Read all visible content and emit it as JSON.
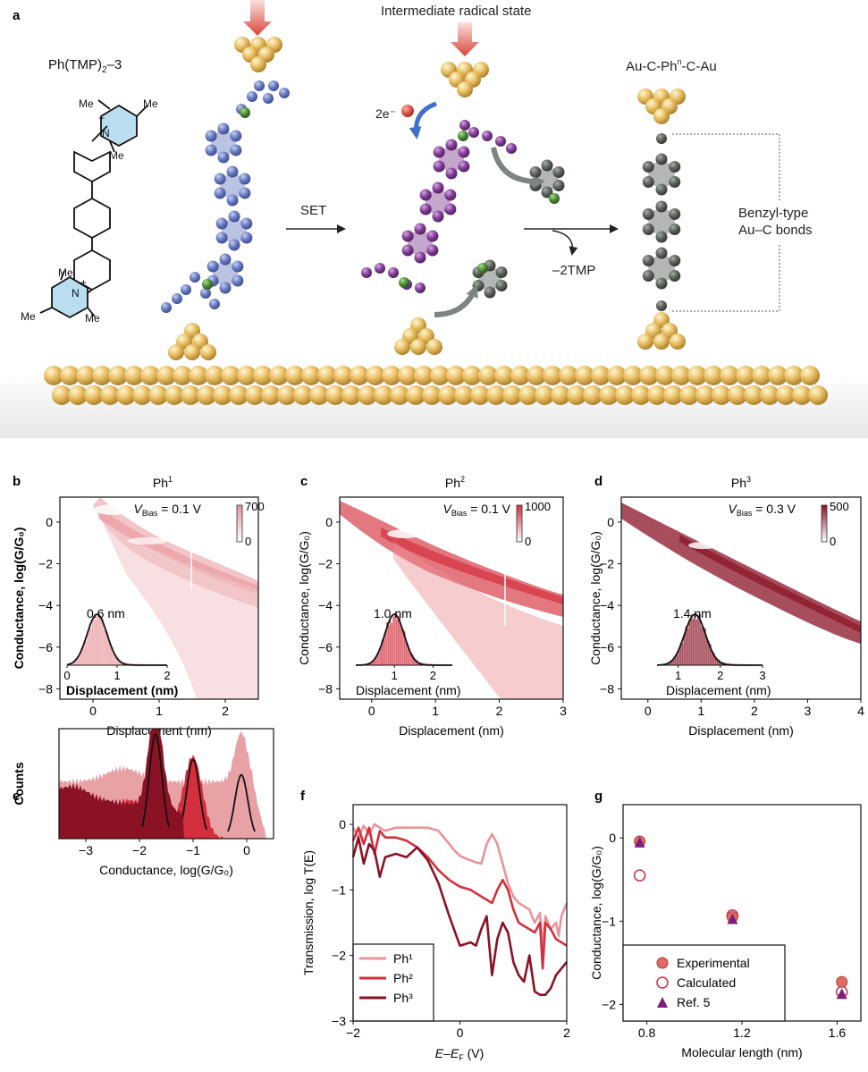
{
  "colors": {
    "gold": "#e9c26d",
    "gold_dark": "#b88a2c",
    "blue": "#6679bd",
    "purple": "#7e3a8e",
    "gray": "#5b605b",
    "green": "#4f8f3a",
    "arrow_red": "#d9534a",
    "ph1": "#e8959a",
    "ph2": "#d42f3c",
    "ph3": "#8a1224",
    "g_point": "#e06b63"
  },
  "panel_a": {
    "label": "a",
    "molecule_name": "Ph(TMP)",
    "molecule_sub": "2",
    "molecule_suffix": "–3",
    "me": "Me",
    "plus": "+",
    "intermediate": "Intermediate radical state",
    "electron": "2e⁻",
    "set": "SET",
    "minus_tmp": "–2TMP",
    "product_prefix": "Au-C-Ph",
    "product_sup": "n",
    "product_suffix": "-C-Au",
    "bond_line1": "Benzyl-type",
    "bond_line2": "Au–C bonds"
  },
  "panel_b": {
    "label": "b",
    "title": "Ph",
    "title_sup": "1",
    "vbias_italic": "V",
    "vbias_sub": "Bias",
    "vbias_value": " = 0.1 V",
    "cbar_max": "700",
    "cbar_min": "0",
    "peak_label": "0.6 nm",
    "inset_ticks": [
      "0",
      "1",
      "2"
    ],
    "inset_xlabel": "Displacement (nm)",
    "xlabel": "Displacement (nm)",
    "ylabel": "Conductance, log(G/G₀)",
    "xticks": [
      "0",
      "1",
      "2"
    ],
    "yticks": [
      "0",
      "−2",
      "−4",
      "−6",
      "−8"
    ]
  },
  "panel_c": {
    "label": "c",
    "title": "Ph",
    "title_sup": "2",
    "vbias_italic": "V",
    "vbias_sub": "Bias",
    "vbias_value": " = 0.1 V",
    "cbar_max": "1000",
    "cbar_min": "0",
    "peak_label": "1.0 nm",
    "inset_ticks": [
      "1",
      "2"
    ],
    "inset_xlabel": "Displacement (nm)",
    "xlabel": "Displacement (nm)",
    "ylabel": "Conductance, log(G/G₀)",
    "xticks": [
      "0",
      "1",
      "2",
      "3"
    ],
    "yticks": [
      "0",
      "−2",
      "−4",
      "−6",
      "−8"
    ]
  },
  "panel_d": {
    "label": "d",
    "title": "Ph",
    "title_sup": "3",
    "vbias_italic": "V",
    "vbias_sub": "Bias",
    "vbias_value": " = 0.3 V",
    "cbar_max": "500",
    "cbar_min": "0",
    "peak_label": "1.4 nm",
    "inset_ticks": [
      "1",
      "2",
      "3"
    ],
    "inset_xlabel": "Displacement (nm)",
    "xlabel": "Displacement (nm)",
    "ylabel": "Conductance, log(G/G₀)",
    "xticks": [
      "0",
      "1",
      "2",
      "3",
      "4"
    ],
    "yticks": [
      "0",
      "−2",
      "−4",
      "−6",
      "−8"
    ]
  },
  "panel_e": {
    "label": "e",
    "ylabel": "Counts",
    "xlabel": "Conductance, log(G/G₀)",
    "xticks": [
      "−3",
      "−2",
      "−1",
      "0"
    ]
  },
  "panel_f": {
    "label": "f",
    "ylabel": "Transmission, log T(E)",
    "xlabel": "E–E",
    "xlabel_sub": "F",
    "xlabel_unit": " (V)",
    "xticks": [
      "−2",
      "0",
      "2"
    ],
    "yticks": [
      "0",
      "−1",
      "−2",
      "−3"
    ],
    "legend": [
      "Ph¹",
      "Ph²",
      "Ph³"
    ]
  },
  "panel_g": {
    "label": "g",
    "ylabel": "Conductance, log(G/G₀)",
    "xlabel": "Molecular length (nm)",
    "xticks": [
      "0.8",
      "1.2",
      "1.6"
    ],
    "yticks": [
      "0",
      "−1",
      "−2"
    ],
    "legend": [
      "Experimental",
      "Calculated",
      "Ref. 5"
    ]
  },
  "chart_data": [
    {
      "type": "heatmap",
      "panel": "b",
      "title": "Ph1",
      "xlabel": "Displacement (nm)",
      "ylabel": "Conductance, log(G/G0)",
      "xlim": [
        -0.5,
        2.5
      ],
      "ylim": [
        -8.5,
        1.2
      ],
      "colorbar": [
        0,
        700
      ],
      "inset_histogram": {
        "peak_nm": 0.6,
        "xlim": [
          0,
          2
        ]
      }
    },
    {
      "type": "heatmap",
      "panel": "c",
      "title": "Ph2",
      "xlabel": "Displacement (nm)",
      "ylabel": "Conductance, log(G/G0)",
      "xlim": [
        -0.5,
        3.0
      ],
      "ylim": [
        -8.5,
        1.2
      ],
      "colorbar": [
        0,
        1000
      ],
      "inset_histogram": {
        "peak_nm": 1.0,
        "xlim": [
          0,
          2.5
        ]
      }
    },
    {
      "type": "heatmap",
      "panel": "d",
      "title": "Ph3",
      "xlabel": "Displacement (nm)",
      "ylabel": "Conductance, log(G/G0)",
      "xlim": [
        -0.5,
        4.0
      ],
      "ylim": [
        -8.5,
        1.2
      ],
      "colorbar": [
        0,
        500
      ],
      "inset_histogram": {
        "peak_nm": 1.4,
        "xlim": [
          0.5,
          3
        ]
      }
    },
    {
      "type": "area",
      "panel": "e",
      "xlabel": "Conductance, log(G/G0)",
      "ylabel": "Counts",
      "xlim": [
        -3.5,
        0.5
      ],
      "series": [
        {
          "name": "Ph1",
          "peak": -0.1,
          "color": "#e8959a"
        },
        {
          "name": "Ph2",
          "peak": -1.0,
          "color": "#d42f3c"
        },
        {
          "name": "Ph3",
          "peak": -1.7,
          "color": "#8a1224"
        }
      ]
    },
    {
      "type": "line",
      "panel": "f",
      "xlabel": "E-EF (V)",
      "ylabel": "Transmission, log T(E)",
      "xlim": [
        -2,
        2
      ],
      "ylim": [
        -3,
        0.3
      ],
      "series": [
        {
          "name": "Ph1",
          "color": "#e8959a",
          "x": [
            -2.0,
            -1.9,
            -1.8,
            -1.7,
            -1.6,
            -1.5,
            -1.4,
            -1.2,
            -1.0,
            -0.8,
            -0.6,
            -0.4,
            -0.3,
            -0.2,
            -0.1,
            0.0,
            0.1,
            0.2,
            0.3,
            0.4,
            0.5,
            0.6,
            0.7,
            0.8,
            0.9,
            1.0,
            1.1,
            1.2,
            1.3,
            1.4,
            1.5,
            1.55,
            1.6,
            1.7,
            1.8,
            1.85,
            1.9,
            2.0
          ],
          "y": [
            -0.05,
            -0.2,
            -0.02,
            -0.15,
            0.0,
            -0.05,
            -0.1,
            -0.05,
            -0.05,
            -0.05,
            -0.05,
            -0.1,
            -0.2,
            -0.3,
            -0.4,
            -0.48,
            -0.52,
            -0.55,
            -0.58,
            -0.6,
            -0.3,
            -0.15,
            -0.3,
            -0.6,
            -0.9,
            -1.1,
            -1.2,
            -1.25,
            -1.3,
            -1.5,
            -1.35,
            -1.9,
            -1.4,
            -1.6,
            -1.5,
            -1.7,
            -1.4,
            -1.2
          ]
        },
        {
          "name": "Ph2",
          "color": "#d42f3c",
          "x": [
            -2.0,
            -1.9,
            -1.8,
            -1.7,
            -1.6,
            -1.5,
            -1.4,
            -1.2,
            -1.0,
            -0.8,
            -0.6,
            -0.4,
            -0.2,
            0.0,
            0.2,
            0.3,
            0.4,
            0.5,
            0.6,
            0.7,
            0.8,
            0.9,
            1.0,
            1.1,
            1.2,
            1.3,
            1.4,
            1.5,
            1.55,
            1.6,
            1.7,
            1.8,
            1.9,
            2.0
          ],
          "y": [
            -0.25,
            -0.05,
            -0.3,
            -0.05,
            -0.45,
            -0.1,
            -0.2,
            -0.2,
            -0.25,
            -0.35,
            -0.5,
            -0.7,
            -0.85,
            -0.95,
            -1.0,
            -1.05,
            -1.1,
            -1.15,
            -1.2,
            -1.0,
            -0.85,
            -1.0,
            -1.3,
            -1.5,
            -1.55,
            -1.6,
            -1.65,
            -1.5,
            -2.2,
            -1.5,
            -1.6,
            -1.75,
            -1.8,
            -1.85
          ]
        },
        {
          "name": "Ph3",
          "color": "#8a1224",
          "x": [
            -2.0,
            -1.9,
            -1.8,
            -1.7,
            -1.6,
            -1.5,
            -1.4,
            -1.2,
            -1.0,
            -0.8,
            -0.6,
            -0.4,
            -0.2,
            0.0,
            0.2,
            0.3,
            0.4,
            0.5,
            0.6,
            0.7,
            0.8,
            0.9,
            1.0,
            1.1,
            1.2,
            1.3,
            1.4,
            1.5,
            1.6,
            1.7,
            1.8,
            1.9,
            2.0
          ],
          "y": [
            -0.5,
            -0.2,
            -0.6,
            -0.3,
            -0.4,
            -0.8,
            -0.5,
            -0.45,
            -0.5,
            -0.35,
            -0.55,
            -0.9,
            -1.4,
            -1.85,
            -1.8,
            -1.85,
            -1.6,
            -1.4,
            -2.3,
            -1.75,
            -1.5,
            -1.65,
            -2.1,
            -2.3,
            -2.4,
            -2.0,
            -2.55,
            -2.6,
            -2.6,
            -2.5,
            -2.3,
            -2.2,
            -2.1
          ]
        }
      ]
    },
    {
      "type": "scatter",
      "panel": "g",
      "xlabel": "Molecular length (nm)",
      "ylabel": "Conductance, log(G/G0)",
      "xlim": [
        0.7,
        1.7
      ],
      "ylim": [
        -2.2,
        0.4
      ],
      "series": [
        {
          "name": "Experimental",
          "x": [
            0.77,
            1.16,
            1.62
          ],
          "y": [
            -0.04,
            -0.95,
            -1.73
          ]
        },
        {
          "name": "Calculated",
          "x": [
            0.77,
            1.16,
            1.62
          ],
          "y": [
            -0.45,
            -0.93,
            -1.85
          ]
        },
        {
          "name": "Ref. 5",
          "x": [
            0.77,
            1.16,
            1.62
          ],
          "y": [
            -0.06,
            -0.98,
            -1.88
          ]
        }
      ]
    }
  ]
}
